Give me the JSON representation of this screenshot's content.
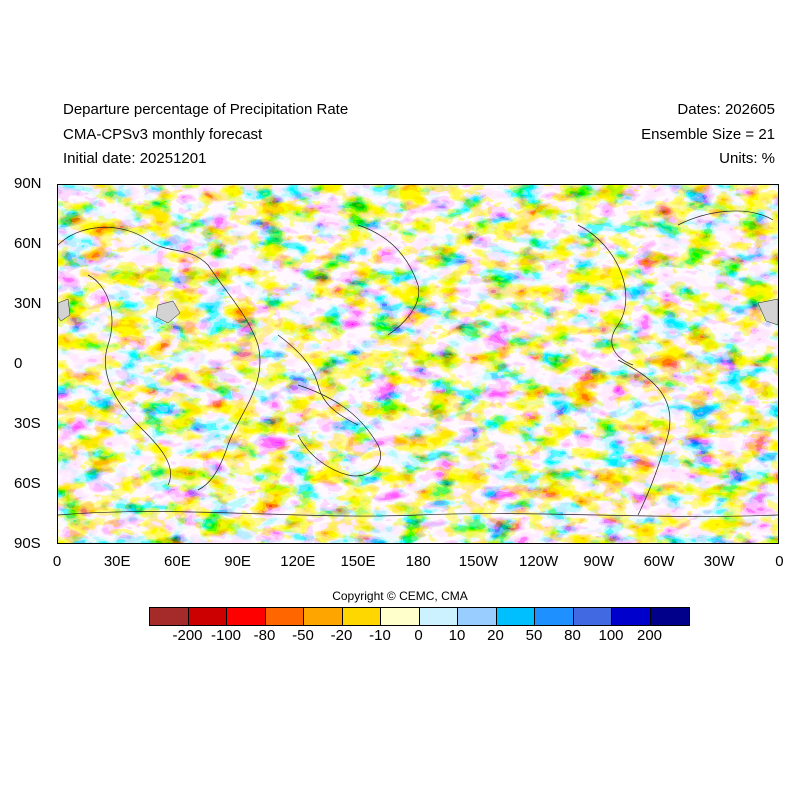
{
  "header": {
    "title": "Departure percentage of Precipitation Rate",
    "subtitle": "CMA-CPSv3 monthly forecast",
    "initial_date": "Initial date: 20251201",
    "dates": "Dates: 202605",
    "ensemble": "Ensemble Size = 21",
    "units": "Units: %"
  },
  "map": {
    "lat_labels": [
      "90N",
      "60N",
      "30N",
      "0",
      "30S",
      "60S",
      "90S"
    ],
    "lon_labels": [
      "0",
      "30E",
      "60E",
      "90E",
      "120E",
      "150E",
      "180",
      "150W",
      "120W",
      "90W",
      "60W",
      "30W",
      "0"
    ]
  },
  "copyright": "Copyright © CEMC, CMA",
  "colorbar": {
    "colors": [
      "#a52a2a",
      "#cc0000",
      "#ff0000",
      "#ff6600",
      "#ffa500",
      "#ffd700",
      "#ffffcc",
      "#ccf2ff",
      "#99ccff",
      "#00bfff",
      "#1e90ff",
      "#4169e1",
      "#0000cd",
      "#00008b"
    ],
    "labels": [
      "-200",
      "-100",
      "-80",
      "-50",
      "-20",
      "-10",
      "0",
      "10",
      "20",
      "50",
      "80",
      "100",
      "200"
    ]
  }
}
